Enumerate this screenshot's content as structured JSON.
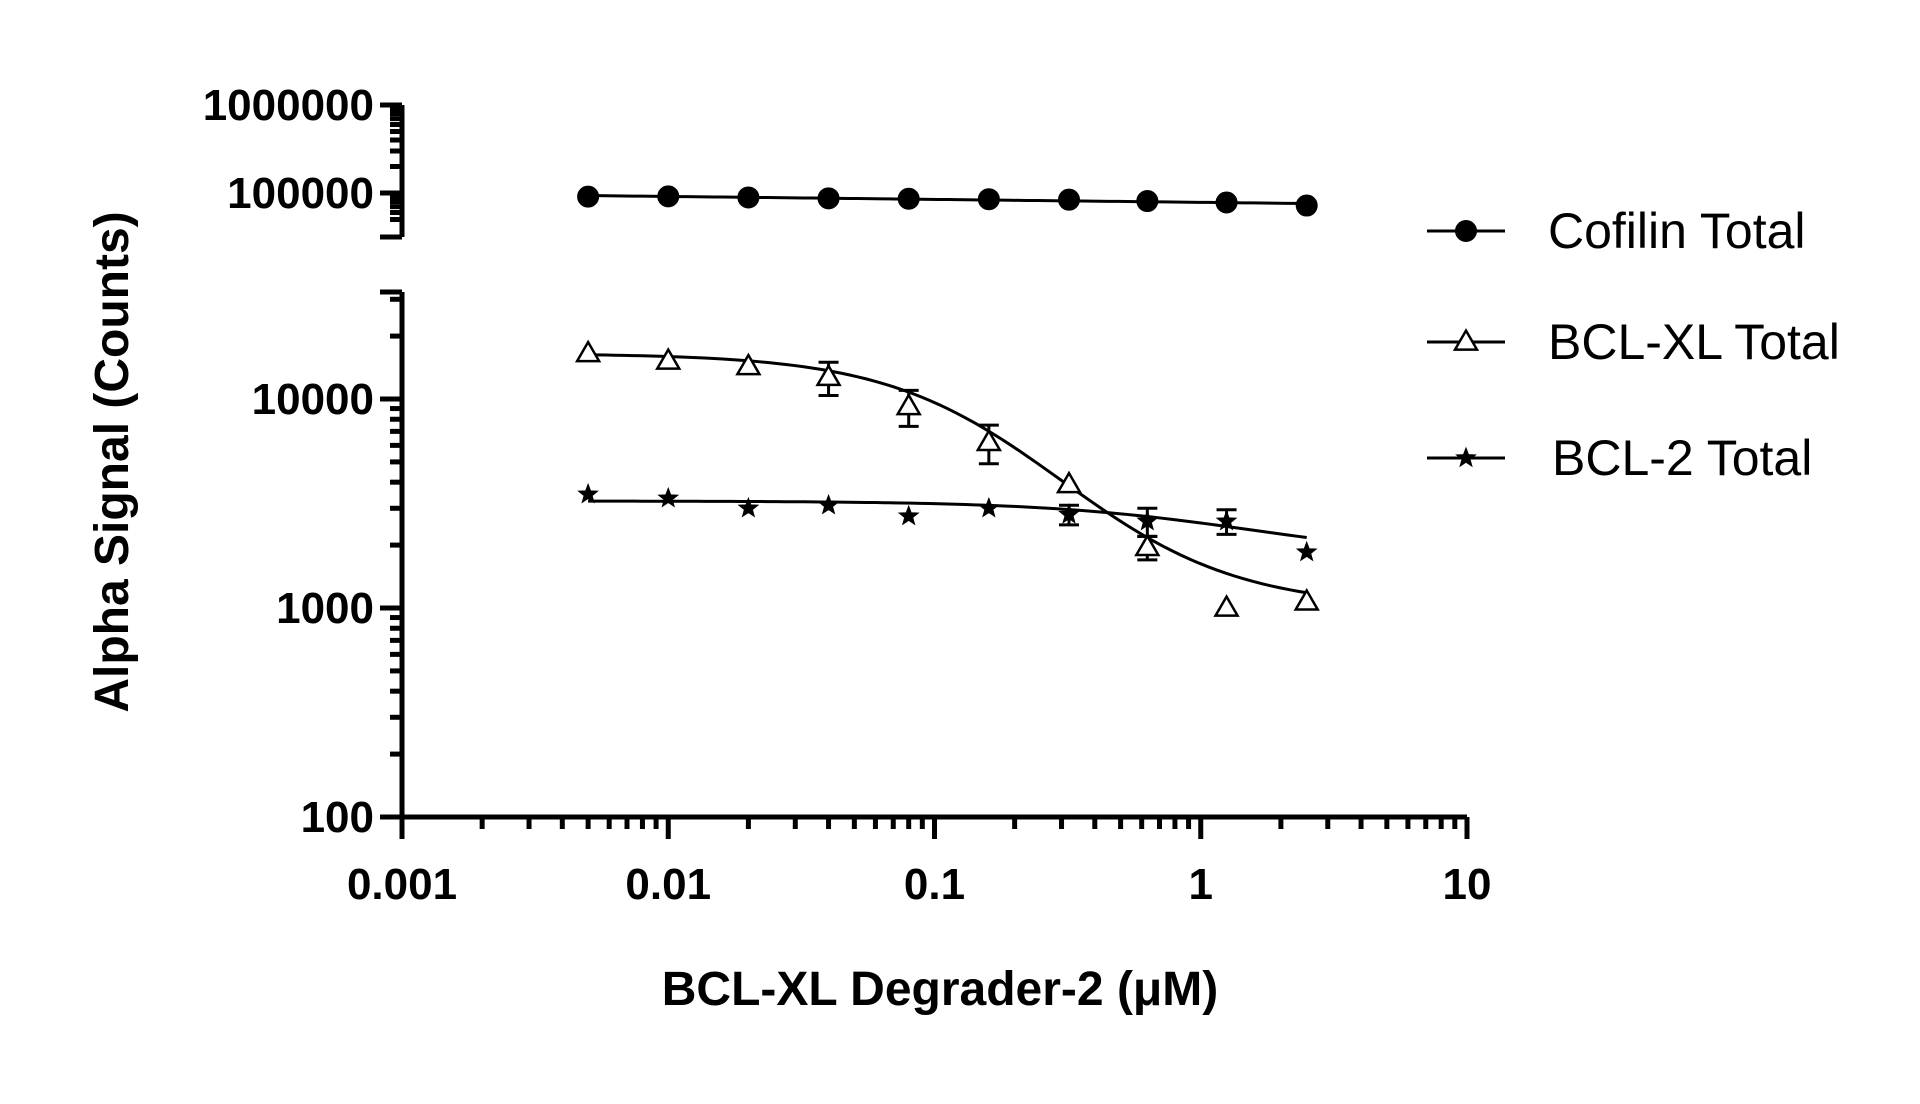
{
  "chart_data": {
    "type": "scatter",
    "title": "",
    "xlabel": "BCL-XL Degrader-2 (μM)",
    "ylabel": "Alpha Signal (Counts)",
    "x_scale": "log",
    "y_scale": "log",
    "y_axis_break": true,
    "xlim": [
      0.001,
      10
    ],
    "ylim_lower_segment": [
      100,
      30000
    ],
    "ylim_upper_segment": [
      50000,
      1000000
    ],
    "x_ticks": [
      "0.001",
      "0.01",
      "0.1",
      "1",
      "10"
    ],
    "y_ticks_lower": [
      "100",
      "1000",
      "10000"
    ],
    "y_ticks_upper": [
      "100000",
      "1000000"
    ],
    "grid": false,
    "legend_position": "right",
    "series": [
      {
        "name": "Cofilin Total",
        "marker": "filled-circle",
        "x": [
          0.005,
          0.01,
          0.02,
          0.04,
          0.08,
          0.16,
          0.32,
          0.63,
          1.25,
          2.5
        ],
        "y": [
          91000,
          91500,
          89000,
          87000,
          86000,
          85000,
          84000,
          81000,
          78000,
          72000
        ],
        "fit": "line"
      },
      {
        "name": "BCL-XL Total",
        "marker": "open-triangle",
        "x": [
          0.005,
          0.01,
          0.02,
          0.04,
          0.08,
          0.16,
          0.32,
          0.63,
          1.25,
          2.5
        ],
        "y": [
          16500,
          15200,
          14300,
          12700,
          9200,
          6200,
          3900,
          1950,
          1000,
          1070
        ],
        "error": [
          null,
          null,
          null,
          2300,
          1800,
          1300,
          null,
          250,
          null,
          null
        ],
        "fit": "sigmoid"
      },
      {
        "name": "BCL-2 Total",
        "marker": "filled-star",
        "x": [
          0.005,
          0.01,
          0.02,
          0.04,
          0.08,
          0.16,
          0.32,
          0.63,
          1.25,
          2.5
        ],
        "y": [
          3500,
          3350,
          3000,
          3100,
          2750,
          3000,
          2800,
          2600,
          2600,
          1850
        ],
        "error": [
          null,
          null,
          null,
          null,
          null,
          null,
          300,
          400,
          350,
          null
        ],
        "fit": "sigmoid"
      }
    ]
  }
}
